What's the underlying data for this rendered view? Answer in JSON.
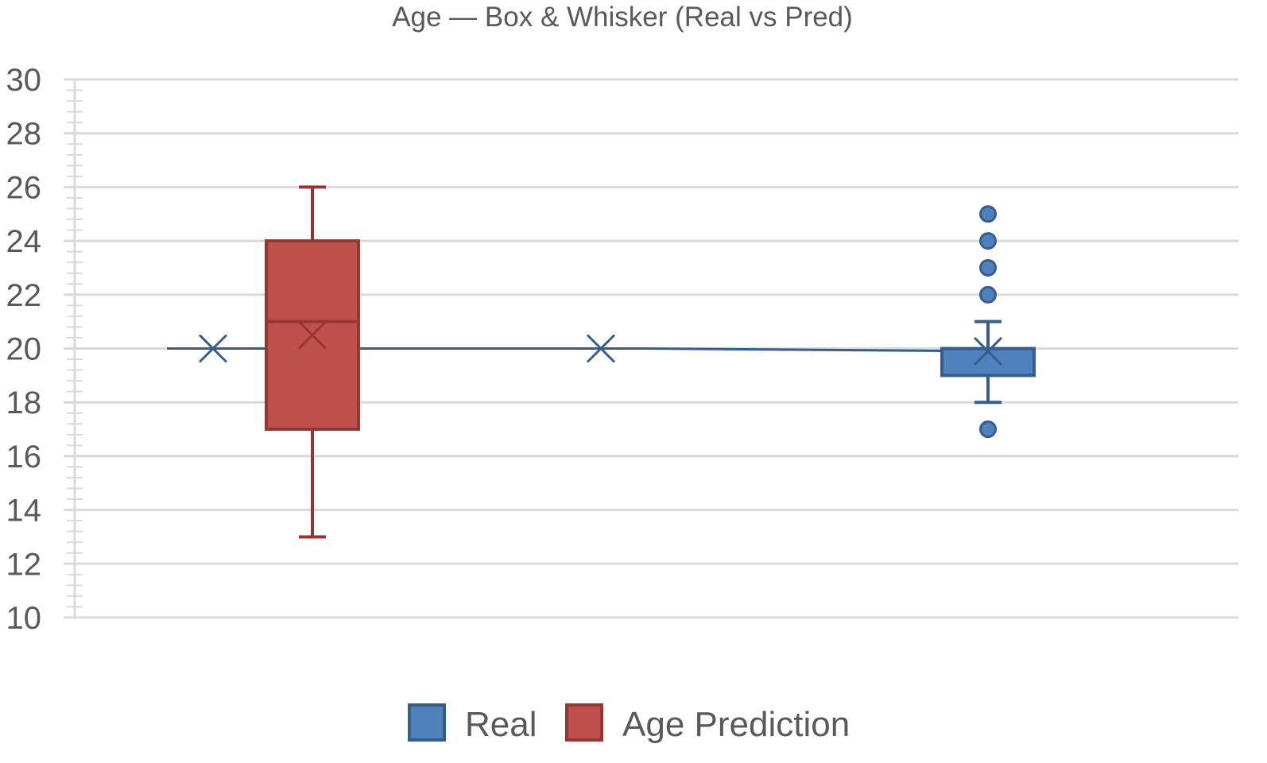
{
  "chart_data": {
    "type": "box",
    "title": "Age — Box & Whisker (Real vs Pred)",
    "xlabel": "",
    "ylabel": "",
    "ylim": [
      10,
      30
    ],
    "yticks": [
      10,
      12,
      14,
      16,
      18,
      20,
      22,
      24,
      26,
      28,
      30
    ],
    "grid": true,
    "legend_position": "bottom",
    "series": [
      {
        "name": "Real",
        "color": "#4f81bd",
        "border": "#385d8a",
        "box": {
          "min": 18,
          "q1": 19,
          "median": 20,
          "q3": 20,
          "max": 21,
          "mean": 19.9
        },
        "outliers": [
          25,
          24,
          23,
          22,
          17
        ],
        "mean_line": [
          {
            "category": 0,
            "mean": 20
          },
          {
            "category": 1,
            "mean": 20
          },
          {
            "category": 2,
            "mean": 19.9
          }
        ]
      },
      {
        "name": "Age Prediction",
        "color": "#c0504d",
        "border": "#943634",
        "box": {
          "min": 13,
          "q1": 17,
          "median": 21,
          "q3": 24,
          "max": 26,
          "mean": 20.5
        },
        "outliers": []
      }
    ]
  }
}
